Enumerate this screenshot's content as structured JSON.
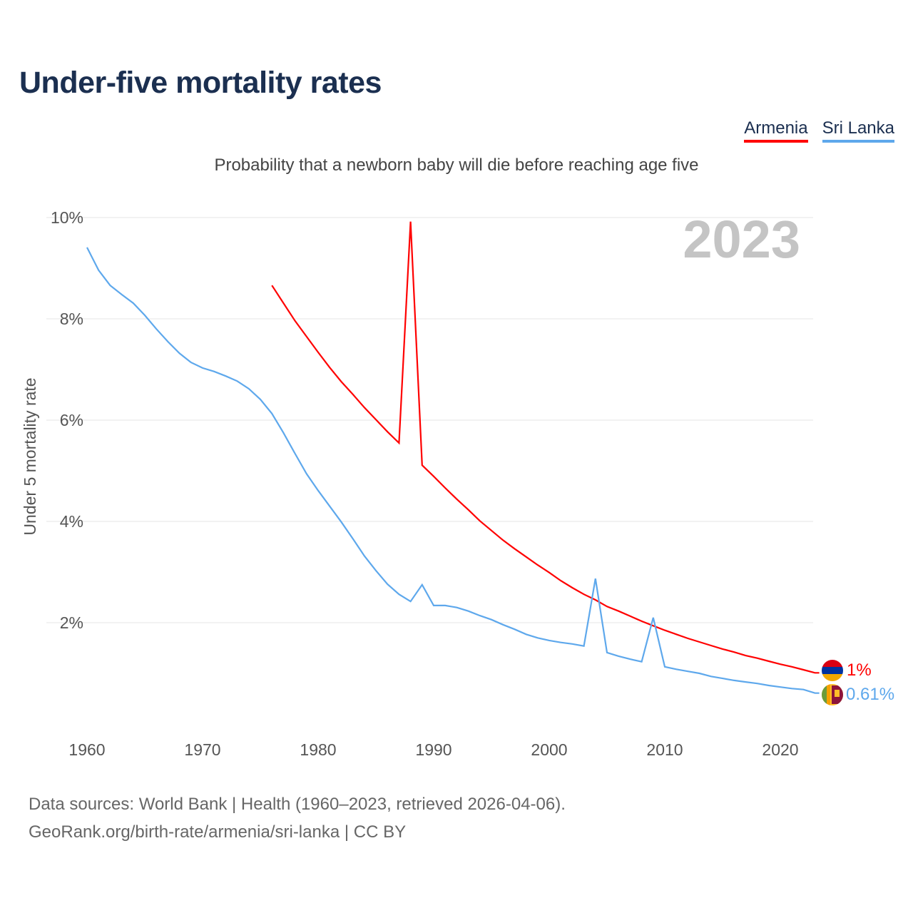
{
  "title": "Under-five mortality rates",
  "subtitle": "Probability that a newborn baby will die before reaching age five",
  "year_overlay": "2023",
  "legend": [
    {
      "label": "Armenia",
      "color": "#ff0000"
    },
    {
      "label": "Sri Lanka",
      "color": "#5ea8ec"
    }
  ],
  "end_labels": {
    "armenia": "1%",
    "sri_lanka": "0.61%"
  },
  "source": {
    "line1": "Data sources: World Bank | Health (1960–2023, retrieved 2026-04-06).",
    "line2": "GeoRank.org/birth-rate/armenia/sri-lanka | CC BY"
  },
  "chart_data": {
    "type": "line",
    "title": "Under-five mortality rates",
    "ylabel": "Under 5 mortality rate",
    "xlabel": "",
    "xlim": [
      1960,
      2023
    ],
    "ylim": [
      0,
      10
    ],
    "yticks": [
      "2%",
      "4%",
      "6%",
      "8%",
      "10%"
    ],
    "ytick_values": [
      2,
      4,
      6,
      8,
      10
    ],
    "xticks": [
      "1960",
      "1970",
      "1980",
      "1990",
      "2000",
      "2010",
      "2020"
    ],
    "xtick_values": [
      1960,
      1970,
      1980,
      1990,
      2000,
      2010,
      2020
    ],
    "grid": true,
    "legend_position": "top-right",
    "series": [
      {
        "name": "Armenia",
        "color": "#ff0000",
        "start": 1976,
        "values": [
          8.66,
          8.31,
          7.96,
          7.65,
          7.34,
          7.04,
          6.76,
          6.51,
          6.25,
          6.01,
          5.77,
          5.55,
          9.92,
          5.11,
          4.89,
          4.66,
          4.44,
          4.23,
          4.01,
          3.82,
          3.63,
          3.46,
          3.3,
          3.14,
          2.99,
          2.83,
          2.69,
          2.56,
          2.45,
          2.32,
          2.23,
          2.13,
          2.03,
          1.94,
          1.85,
          1.77,
          1.69,
          1.62,
          1.55,
          1.48,
          1.42,
          1.35,
          1.3,
          1.24,
          1.18,
          1.13,
          1.07,
          1.01
        ]
      },
      {
        "name": "Sri Lanka",
        "color": "#5ea8ec",
        "start": 1960,
        "values": [
          9.41,
          8.96,
          8.66,
          8.48,
          8.31,
          8.07,
          7.8,
          7.55,
          7.32,
          7.14,
          7.03,
          6.96,
          6.87,
          6.77,
          6.62,
          6.41,
          6.13,
          5.75,
          5.34,
          4.94,
          4.61,
          4.3,
          3.99,
          3.66,
          3.32,
          3.03,
          2.76,
          2.56,
          2.42,
          2.75,
          2.34,
          2.34,
          2.3,
          2.23,
          2.14,
          2.06,
          1.96,
          1.87,
          1.77,
          1.7,
          1.65,
          1.61,
          1.58,
          1.54,
          2.87,
          1.41,
          1.34,
          1.28,
          1.23,
          2.1,
          1.13,
          1.08,
          1.04,
          1.0,
          0.94,
          0.9,
          0.86,
          0.83,
          0.8,
          0.76,
          0.73,
          0.7,
          0.68,
          0.61
        ]
      }
    ]
  }
}
